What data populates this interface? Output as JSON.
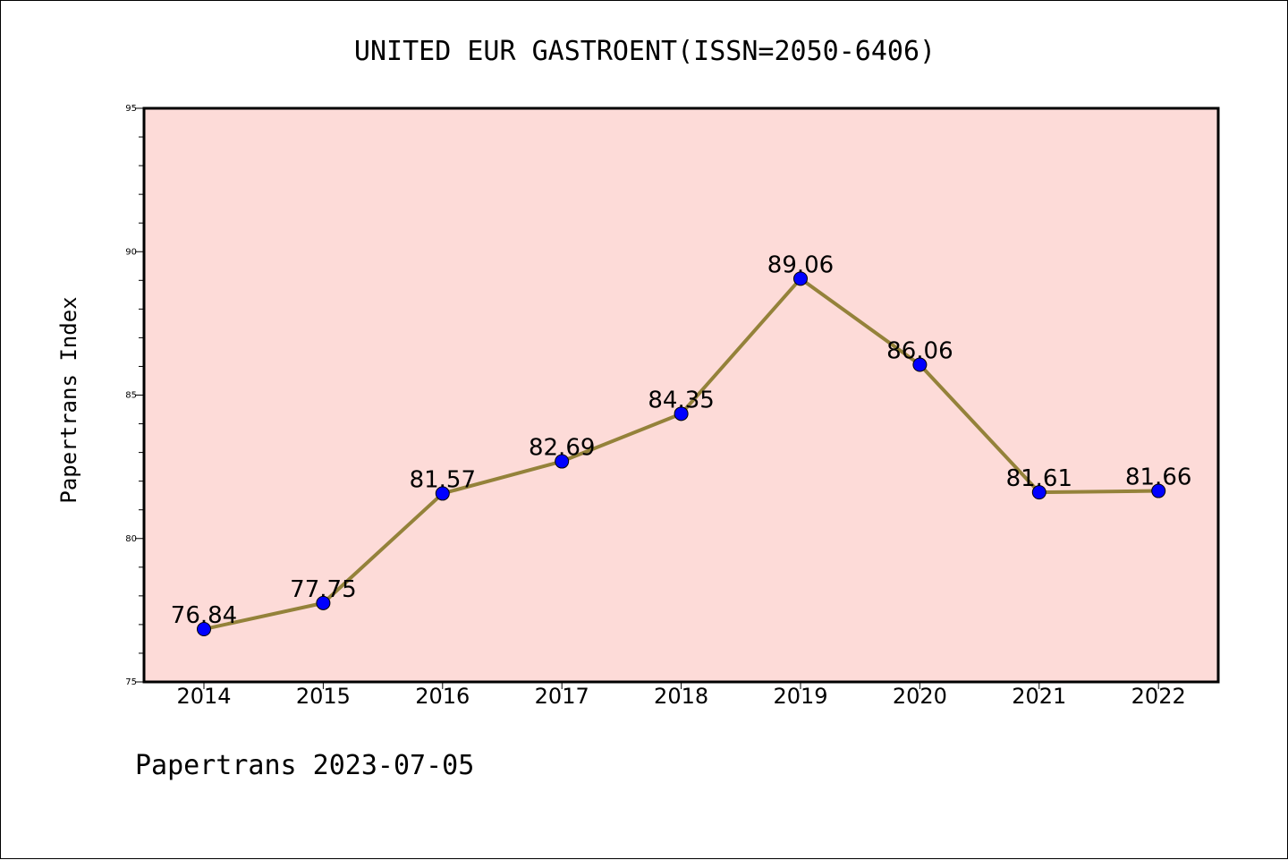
{
  "chart_data": {
    "type": "line",
    "title": "UNITED EUR GASTROENT(ISSN=2050-6406)",
    "ylabel": "Papertrans Index",
    "xlabel": "",
    "footer": "Papertrans 2023-07-05",
    "categories": [
      "2014",
      "2015",
      "2016",
      "2017",
      "2018",
      "2019",
      "2020",
      "2021",
      "2022"
    ],
    "series": [
      {
        "values": [
          76.84,
          77.75,
          81.57,
          82.69,
          84.35,
          89.06,
          86.06,
          81.61,
          81.66
        ],
        "labels": [
          "76.84",
          "77.75",
          "81.57",
          "82.69",
          "84.35",
          "89.06",
          "86.06",
          "81.61",
          "81.66"
        ]
      }
    ],
    "ylim": [
      75,
      95
    ],
    "yticks": [
      "75",
      "80",
      "85",
      "90",
      "95"
    ],
    "grid": false,
    "legend": "none",
    "colors": {
      "plot_background": "#fddbd8",
      "line": "#94823a",
      "marker": "#0000ff",
      "axes": "#000000"
    }
  }
}
